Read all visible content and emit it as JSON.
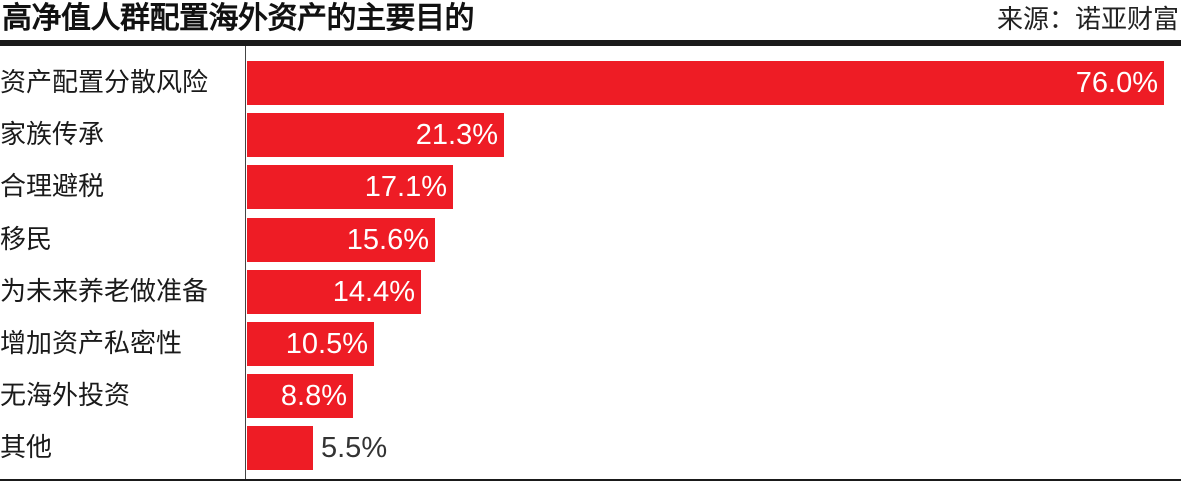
{
  "header": {
    "title": "高净值人群配置海外资产的主要目的",
    "source": "来源：诺亚财富"
  },
  "chart_data": {
    "type": "bar",
    "orientation": "horizontal",
    "title": "高净值人群配置海外资产的主要目的",
    "source": "来源：诺亚财富",
    "categories": [
      "资产配置分散风险",
      "家族传承",
      "合理避税",
      "移民",
      "为未来养老做准备",
      "增加资产私密性",
      "无海外投资",
      "其他"
    ],
    "values": [
      76.0,
      21.3,
      17.1,
      15.6,
      14.4,
      10.5,
      8.8,
      5.5
    ],
    "value_labels": [
      "76.0%",
      "21.3%",
      "17.1%",
      "15.6%",
      "14.4%",
      "10.5%",
      "8.8%",
      "5.5%"
    ],
    "unit": "%",
    "xlim": [
      0,
      76.0
    ],
    "grid": false,
    "legend": "none",
    "bar_color": "#ee1c25"
  }
}
